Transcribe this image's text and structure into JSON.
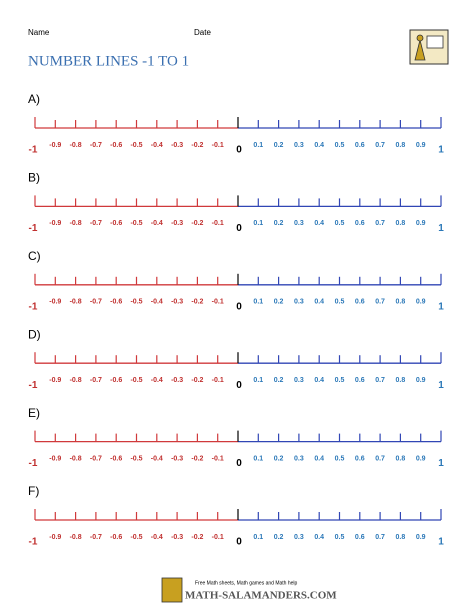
{
  "header": {
    "name_label": "Name",
    "date_label": "Date",
    "title": "NUMBER LINES -1 TO 1"
  },
  "number_lines": [
    {
      "label": "A)"
    },
    {
      "label": "B)"
    },
    {
      "label": "C)"
    },
    {
      "label": "D)"
    },
    {
      "label": "E)"
    },
    {
      "label": "F)"
    }
  ],
  "tick_labels": [
    "-1",
    "-0.9",
    "-0.8",
    "-0.7",
    "-0.6",
    "-0.5",
    "-0.4",
    "-0.3",
    "-0.2",
    "-0.1",
    "0",
    "0.1",
    "0.2",
    "0.3",
    "0.4",
    "0.5",
    "0.6",
    "0.7",
    "0.8",
    "0.9",
    "1"
  ],
  "footer": {
    "tagline": "Free Math sheets, Math games and Math help",
    "site": "MATH-SALAMANDERS.COM"
  }
}
